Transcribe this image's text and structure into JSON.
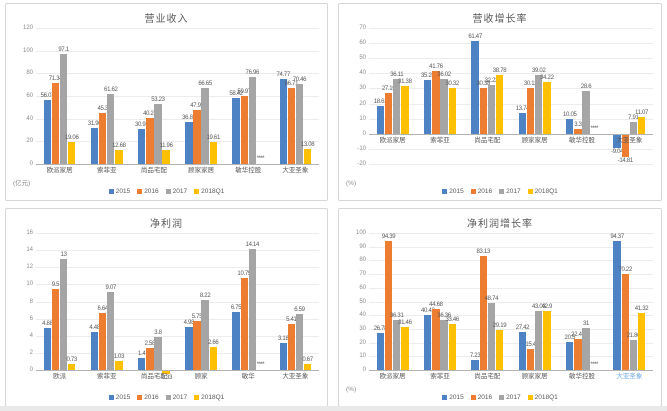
{
  "page": {
    "background": "#ffffff"
  },
  "legend_years": [
    "2015",
    "2016",
    "2017",
    "2018Q1"
  ],
  "series_colors": {
    "2015": "#4D82C4",
    "2016": "#ED7D31",
    "2017": "#A5A5A5",
    "2018Q1": "#FFC000"
  },
  "missing_label": "****",
  "text_color": "#595959",
  "chart_data": [
    {
      "type": "bar",
      "title": "营业收入",
      "unit": "(亿元)",
      "position": "top-left",
      "ylim": [
        0,
        120
      ],
      "yticks": [
        0,
        20,
        40,
        60,
        80,
        100,
        120
      ],
      "grid": true,
      "legend_position": "bottom",
      "categories": [
        "欧派家居",
        "索菲亚",
        "尚品宅配",
        "顾家家居",
        "敏华控股",
        "大亚圣象"
      ],
      "series": [
        {
          "name": "2015",
          "values": [
            56.07,
            31.96,
            30.98,
            36.86,
            58.42,
            74.77
          ]
        },
        {
          "name": "2016",
          "values": [
            71.34,
            45.3,
            40.26,
            47.95,
            59.97,
            66.71
          ]
        },
        {
          "name": "2017",
          "values": [
            97.1,
            61.62,
            53.23,
            66.65,
            76.96,
            70.46
          ]
        },
        {
          "name": "2018Q1",
          "values": [
            19.06,
            12.68,
            11.96,
            19.61,
            null,
            13.08
          ]
        }
      ]
    },
    {
      "type": "bar",
      "title": "营收增长率",
      "unit": "(%)",
      "position": "top-right",
      "ylim": [
        -20,
        70
      ],
      "yticks": [
        -20,
        -10,
        0,
        10,
        20,
        30,
        40,
        50,
        60,
        70
      ],
      "grid": true,
      "legend_position": "bottom",
      "categories": [
        "欧派家居",
        "索菲亚",
        "尚品宅配",
        "顾家家居",
        "敏华控股",
        "大亚圣象"
      ],
      "series": [
        {
          "name": "2015",
          "values": [
            18.61,
            35.26,
            61.47,
            13.74,
            10.05,
            -9.04
          ]
        },
        {
          "name": "2016",
          "values": [
            27.19,
            41.76,
            30.38,
            30.12,
            3.3,
            -14.81
          ]
        },
        {
          "name": "2017",
          "values": [
            36.11,
            36.02,
            32.23,
            39.02,
            28.6,
            7.91
          ]
        },
        {
          "name": "2018Q1",
          "values": [
            31.38,
            30.32,
            38.78,
            34.22,
            null,
            11.07
          ]
        }
      ]
    },
    {
      "type": "bar",
      "title": "净利润",
      "unit": null,
      "position": "bottom-left",
      "ylim": [
        0,
        16
      ],
      "yticks": [
        0,
        2,
        4,
        6,
        8,
        10,
        12,
        14,
        16
      ],
      "grid": true,
      "legend_position": "bottom",
      "categories": [
        "欧派",
        "索菲亚",
        "尚品宅配",
        "顾家",
        "敏华",
        "大亚圣象"
      ],
      "series": [
        {
          "name": "2015",
          "values": [
            4.88,
            4.48,
            1.4,
            4.98,
            6.75,
            3.18
          ]
        },
        {
          "name": "2016",
          "values": [
            9.5,
            6.64,
            2.58,
            5.75,
            10.75,
            5.41
          ]
        },
        {
          "name": "2017",
          "values": [
            13,
            9.07,
            3.8,
            8.22,
            14.14,
            6.59
          ]
        },
        {
          "name": "2018Q1",
          "values": [
            0.73,
            1.03,
            -0.33,
            2.66,
            null,
            0.67
          ]
        }
      ]
    },
    {
      "type": "bar",
      "title": "净利润增长率",
      "unit": "(%)",
      "position": "bottom-right",
      "ylim": [
        0,
        100
      ],
      "yticks": [
        0,
        10,
        20,
        30,
        40,
        50,
        60,
        70,
        80,
        90,
        100
      ],
      "grid": true,
      "legend_position": "bottom",
      "categories": [
        "欧派家居",
        "索菲亚",
        "尚品宅配",
        "顾家家居",
        "敏华控股",
        "大亚圣象"
      ],
      "category_label_colors": [
        "#595959",
        "#595959",
        "#595959",
        "#595959",
        "#595959",
        "#6FA8DC"
      ],
      "series": [
        {
          "name": "2015",
          "values": [
            26.78,
            40.42,
            7.23,
            27.42,
            20.5,
            94.37
          ]
        },
        {
          "name": "2016",
          "values": [
            94.39,
            44.68,
            83.13,
            15.4,
            22.45,
            70.22
          ]
        },
        {
          "name": "2017",
          "values": [
            36.31,
            36.36,
            48.74,
            43.03,
            31,
            21.86
          ]
        },
        {
          "name": "2018Q1",
          "values": [
            31.46,
            33.46,
            29.19,
            42.9,
            null,
            41.32
          ]
        }
      ]
    }
  ]
}
